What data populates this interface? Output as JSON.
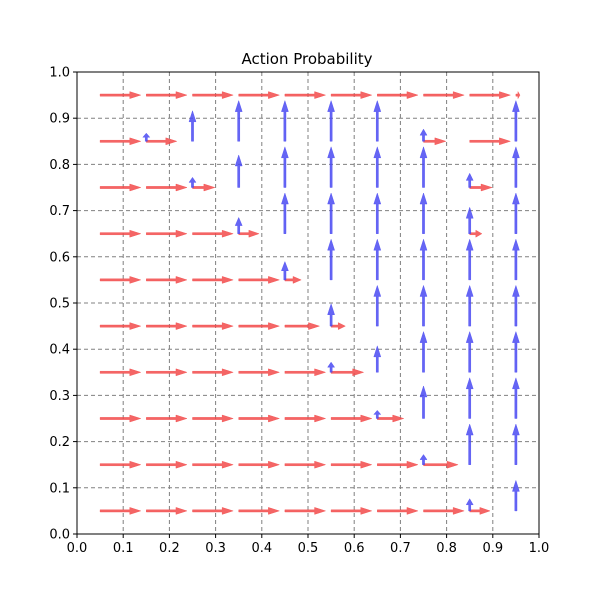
{
  "chart_data": {
    "type": "quiver",
    "title": "Action Probability",
    "xlabel": "",
    "ylabel": "",
    "xlim": [
      0,
      1
    ],
    "ylim": [
      0,
      1
    ],
    "grid": true,
    "grid_style": "dashed",
    "x_ticks": [
      "0.0",
      "0.1",
      "0.2",
      "0.3",
      "0.4",
      "0.5",
      "0.6",
      "0.7",
      "0.8",
      "0.9",
      "1.0"
    ],
    "y_ticks": [
      "0.0",
      "0.1",
      "0.2",
      "0.3",
      "0.4",
      "0.5",
      "0.6",
      "0.7",
      "0.8",
      "0.9",
      "1.0"
    ],
    "colors": {
      "right": "#f24a4a",
      "up": "#4a4af2",
      "grid": "#808080"
    },
    "x_centers": [
      0.05,
      0.15,
      0.25,
      0.35,
      0.45,
      0.55,
      0.65,
      0.75,
      0.85,
      0.95
    ],
    "y_centers": [
      0.05,
      0.15,
      0.25,
      0.35,
      0.45,
      0.55,
      0.65,
      0.75,
      0.85,
      0.95
    ],
    "series": [
      {
        "name": "right",
        "values": [
          [
            1,
            1,
            1,
            1,
            1,
            1,
            1,
            1,
            0.5,
            0
          ],
          [
            1,
            1,
            1,
            1,
            1,
            1,
            1,
            0.85,
            0,
            0
          ],
          [
            1,
            1,
            1,
            1,
            1,
            1,
            0.65,
            0,
            0,
            0
          ],
          [
            1,
            1,
            1,
            1,
            1,
            0.8,
            0,
            0,
            0,
            0
          ],
          [
            1,
            1,
            1,
            1,
            0.85,
            0.35,
            0,
            0,
            0,
            0
          ],
          [
            1,
            1,
            1,
            1,
            0.4,
            0,
            0,
            0,
            0,
            0
          ],
          [
            1,
            1,
            1,
            0.5,
            0,
            0,
            0,
            0,
            0.3,
            0
          ],
          [
            1,
            1,
            0.55,
            0,
            0,
            0,
            0,
            0,
            0.55,
            0
          ],
          [
            1,
            0.75,
            0,
            0,
            0,
            0,
            0,
            0.55,
            1,
            0
          ],
          [
            1,
            1,
            1,
            1,
            1,
            1,
            1,
            1,
            1,
            0.1
          ]
        ]
      },
      {
        "name": "up",
        "values": [
          [
            0,
            0,
            0,
            0,
            0,
            0,
            0,
            0,
            0.3,
            0.75
          ],
          [
            0,
            0,
            0,
            0,
            0,
            0,
            0,
            0.25,
            1,
            1
          ],
          [
            0,
            0,
            0,
            0,
            0,
            0,
            0.2,
            0.8,
            1,
            1
          ],
          [
            0,
            0,
            0,
            0,
            0,
            0.25,
            0.65,
            1,
            1,
            1
          ],
          [
            0,
            0,
            0,
            0,
            0,
            0.55,
            1,
            1,
            1,
            1
          ],
          [
            0,
            0,
            0,
            0,
            0.45,
            1,
            1,
            1,
            1,
            1
          ],
          [
            0,
            0,
            0,
            0.4,
            1,
            1,
            1,
            1,
            0.65,
            1
          ],
          [
            0,
            0,
            0.25,
            0.8,
            1,
            1,
            1,
            1,
            0.35,
            1
          ],
          [
            0,
            0.2,
            0.75,
            1,
            1,
            1,
            1,
            0.3,
            0,
            1
          ],
          [
            0,
            0,
            0,
            0,
            0,
            0,
            0,
            0,
            0,
            0
          ]
        ]
      }
    ]
  }
}
